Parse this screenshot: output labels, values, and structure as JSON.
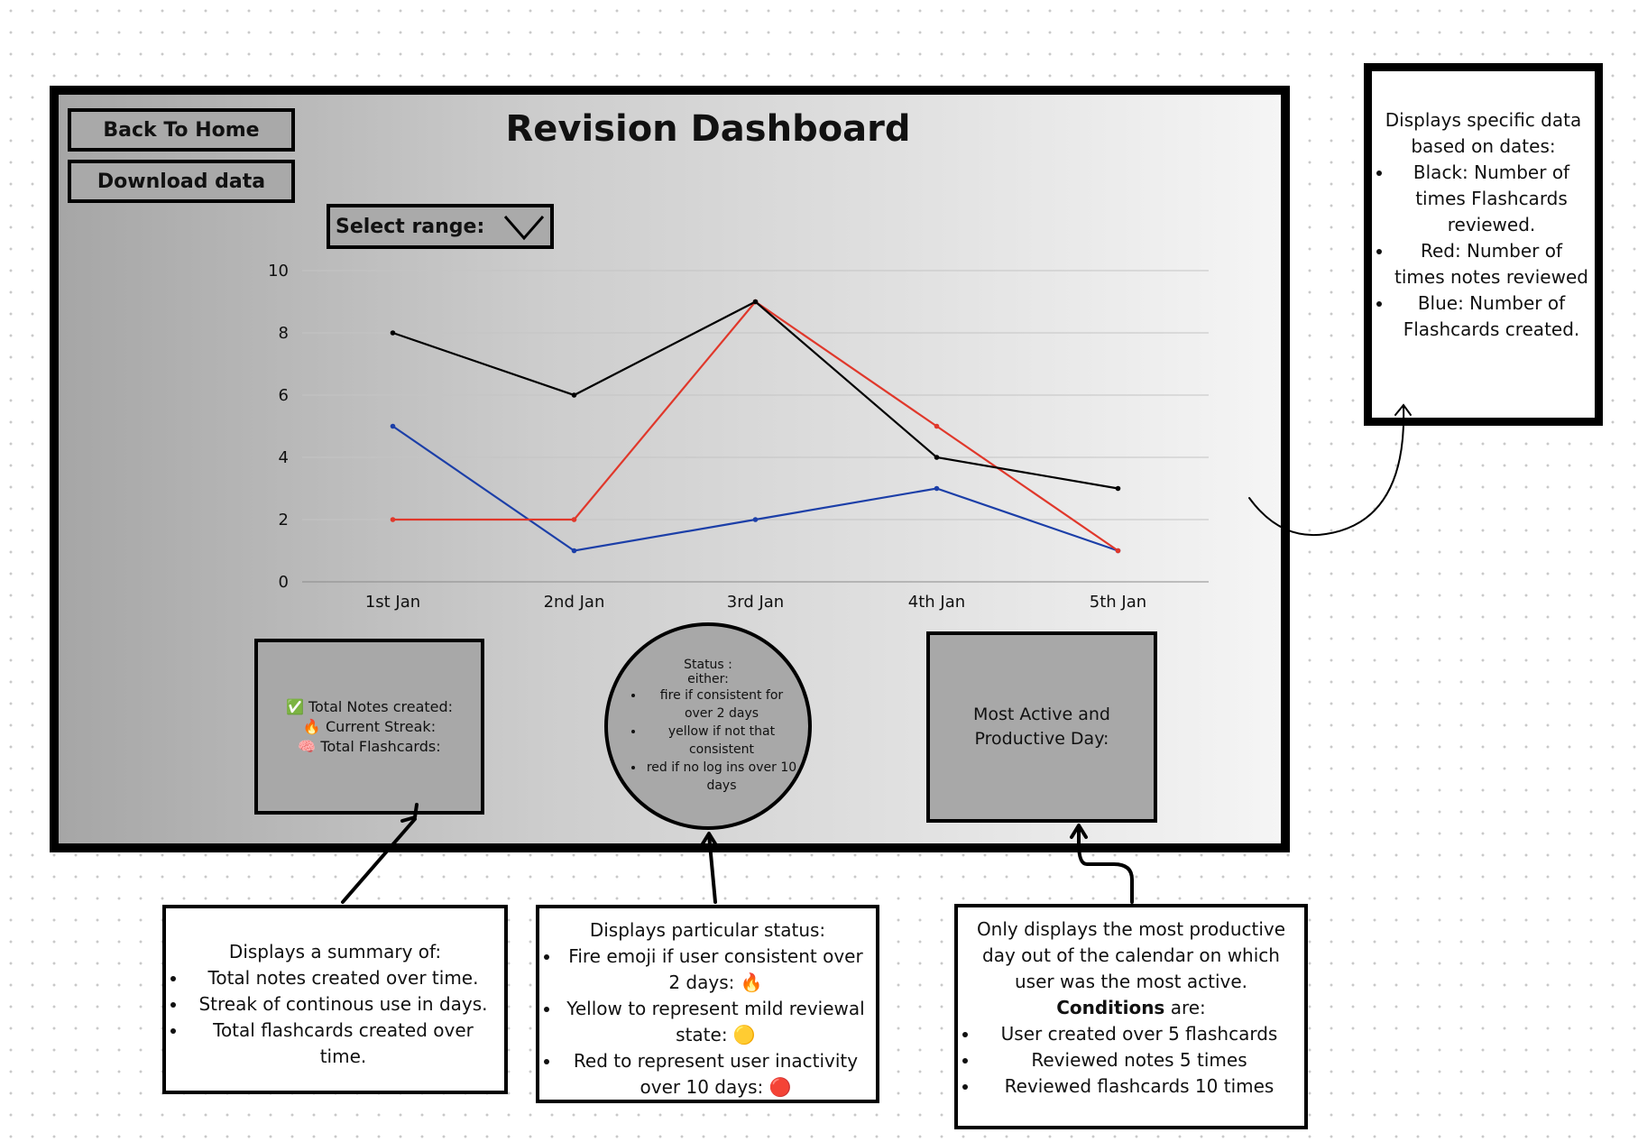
{
  "header": {
    "title": "Revision Dashboard",
    "back_label": "Back To Home",
    "download_label": "Download data",
    "select_label": "Select range:"
  },
  "chart_data": {
    "type": "line",
    "categories": [
      "1st Jan",
      "2nd Jan",
      "3rd Jan",
      "4th Jan",
      "5th Jan"
    ],
    "series": [
      {
        "name": "Black: Number of times Flashcards reviewed.",
        "color": "#000000",
        "values": [
          8,
          6,
          9,
          4,
          3
        ]
      },
      {
        "name": "Red: Number of times notes reviewed",
        "color": "#e0382b",
        "values": [
          2,
          2,
          9,
          5,
          1
        ]
      },
      {
        "name": "Blue: Number of Flashcards created.",
        "color": "#1c3fa8",
        "values": [
          5,
          1,
          2,
          3,
          1
        ]
      }
    ],
    "yticks": [
      "0",
      "2",
      "4",
      "6",
      "8",
      "10"
    ],
    "ylim": [
      0,
      10
    ],
    "grid": true
  },
  "summary_card": {
    "notes_label": "Total Notes created:",
    "streak_label": "Current Streak:",
    "flashcards_label": "Total Flashcards:",
    "notes_emoji": "✅",
    "streak_emoji": "🔥",
    "flashcards_emoji": "🧠"
  },
  "status_circle": {
    "heading": "Status :",
    "sub": "either:",
    "items": [
      "fire if consistent for over 2 days",
      "yellow if not that consistent",
      "red if no log ins over 10 days"
    ]
  },
  "productive_card": {
    "label": "Most Active and Productive Day:"
  },
  "legend_note": {
    "intro": "Displays specific data based on dates:",
    "items": [
      "Black: Number of times Flashcards reviewed.",
      "Red: Number of times notes reviewed",
      "Blue: Number of Flashcards created."
    ]
  },
  "summary_note": {
    "intro": "Displays a summary of:",
    "items": [
      "Total notes created over time.",
      "Streak of continous use in days.",
      "Total flashcards created over time."
    ]
  },
  "status_note": {
    "intro": "Displays particular status:",
    "items": [
      "Fire emoji if user consistent over 2 days: 🔥",
      "Yellow to represent mild reviewal state: 🟡",
      "Red to represent user inactivity over 10 days: 🔴"
    ]
  },
  "productive_note": {
    "intro": "Only displays the most productive day out of the calendar on which user was the most active.",
    "conditions_bold": "Conditions",
    "conditions_rest": "are:",
    "items": [
      "User created over 5 flashcards",
      "Reviewed notes 5 times",
      "Reviewed flashcards 10 times"
    ]
  }
}
